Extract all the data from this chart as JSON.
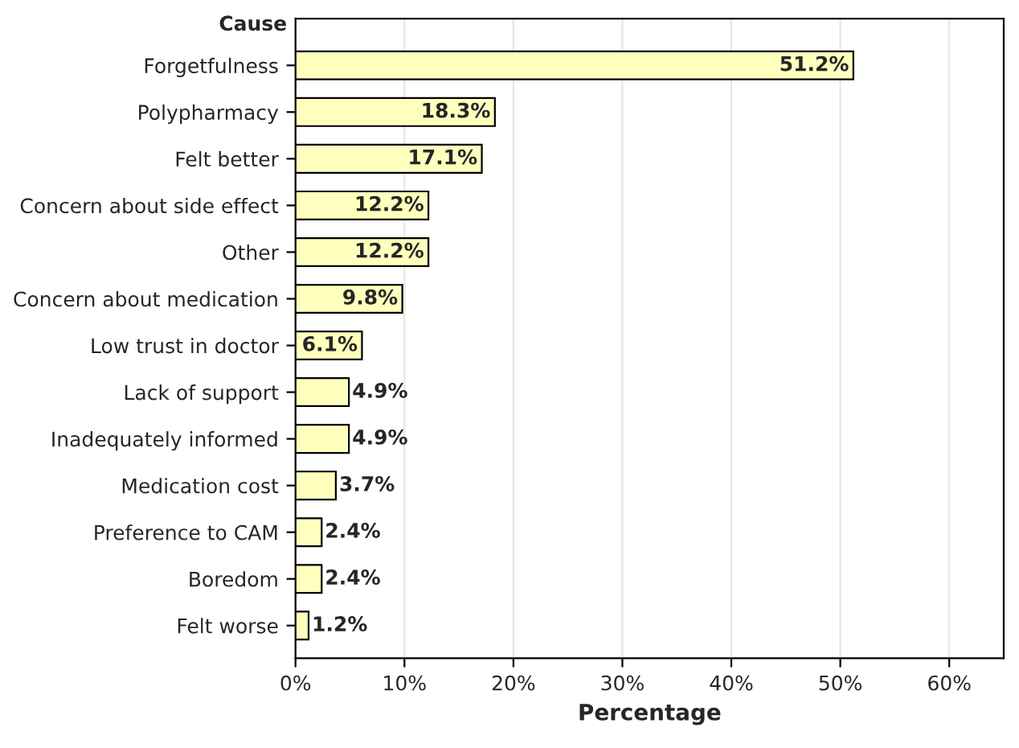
{
  "chart_data": {
    "type": "bar",
    "orientation": "horizontal",
    "xlabel": "Percentage",
    "ylabel": "Cause",
    "categories": [
      "Forgetfulness",
      "Polypharmacy",
      "Felt better",
      "Concern about side effect",
      "Other",
      "Concern about medication",
      "Low trust in doctor",
      "Lack of support",
      "Inadequately informed",
      "Medication cost",
      "Preference to CAM",
      "Boredom",
      "Felt worse"
    ],
    "values": [
      51.2,
      18.3,
      17.1,
      12.2,
      12.2,
      9.8,
      6.1,
      4.9,
      4.9,
      3.7,
      2.4,
      2.4,
      1.2
    ],
    "value_labels": [
      "51.2%",
      "18.3%",
      "17.1%",
      "12.2%",
      "12.2%",
      "9.8%",
      "6.1%",
      "4.9%",
      "4.9%",
      "3.7%",
      "2.4%",
      "2.4%",
      "1.2%"
    ],
    "color": "#ffffbe",
    "xlim": [
      0,
      65
    ],
    "xticks": [
      {
        "value": 0,
        "label": "0%"
      },
      {
        "value": 10,
        "label": "10%"
      },
      {
        "value": 20,
        "label": "20%"
      },
      {
        "value": 30,
        "label": "30%"
      },
      {
        "value": 40,
        "label": "40%"
      },
      {
        "value": 50,
        "label": "50%"
      },
      {
        "value": 60,
        "label": "60%"
      }
    ],
    "grid": "x",
    "legend": false
  }
}
